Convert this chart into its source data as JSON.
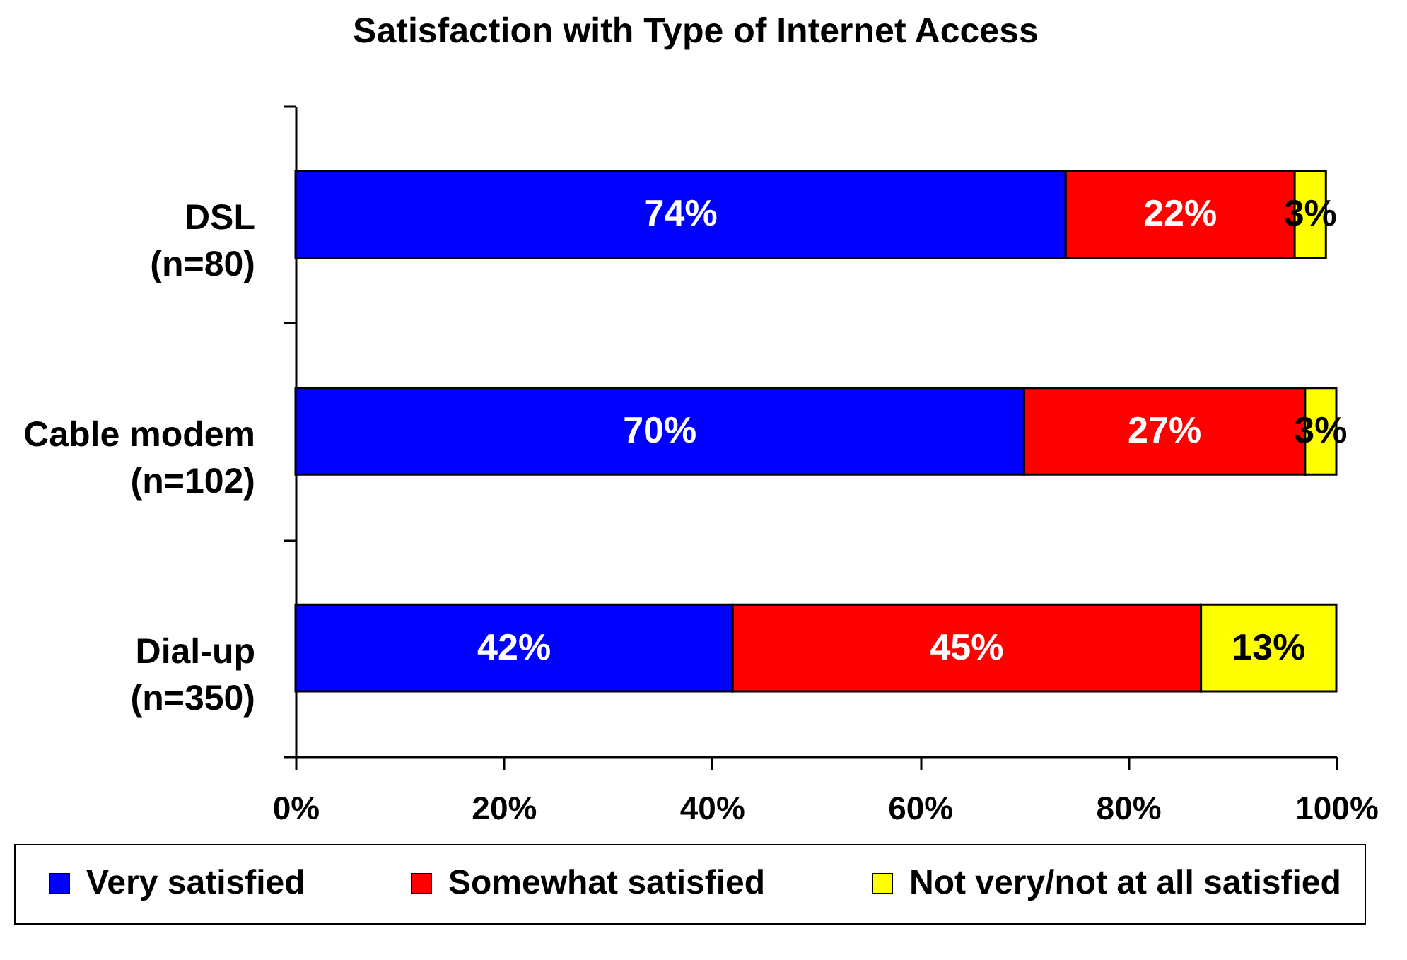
{
  "chart_data": {
    "type": "bar",
    "title": "Satisfaction with Type of Internet Access",
    "orientation": "horizontal",
    "stacked": true,
    "categories": [
      "DSL\n(n=80)",
      "Cable modem\n(n=102)",
      "Dial-up\n(n=350)"
    ],
    "series": [
      {
        "name": "Very satisfied",
        "color": "#0000ff",
        "values": [
          74,
          70,
          42
        ],
        "value_labels": [
          "74%",
          "70%",
          "42%"
        ]
      },
      {
        "name": "Somewhat satisfied",
        "color": "#ff0000",
        "values": [
          22,
          27,
          45
        ],
        "value_labels": [
          "22%",
          "27%",
          "45%"
        ]
      },
      {
        "name": "Not very/not at all satisfied",
        "color": "#ffff00",
        "values": [
          3,
          3,
          13
        ],
        "value_labels": [
          "3%",
          "3%",
          "13%"
        ]
      }
    ],
    "xlim": [
      0,
      100
    ],
    "xticks": [
      {
        "value": 0,
        "label": "0%"
      },
      {
        "value": 20,
        "label": "20%"
      },
      {
        "value": 40,
        "label": "40%"
      },
      {
        "value": 60,
        "label": "60%"
      },
      {
        "value": 80,
        "label": "80%"
      },
      {
        "value": 100,
        "label": "100%"
      }
    ],
    "legend": "bottom"
  }
}
